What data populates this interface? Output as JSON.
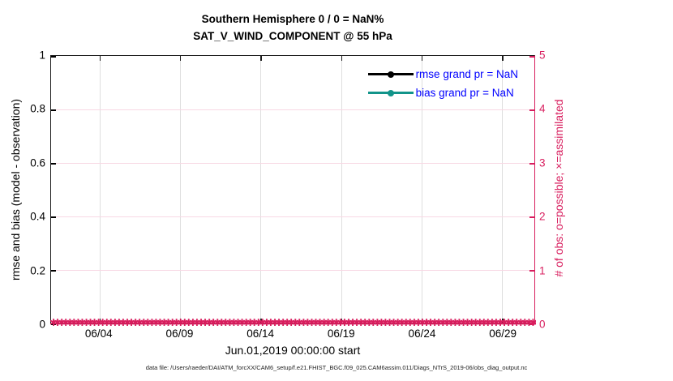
{
  "figure": {
    "titles": {
      "line1": "Southern Hemisphere 0 / 0 = NaN%",
      "line2": "SAT_V_WIND_COMPONENT @ 55 hPa"
    },
    "footer": "data file: /Users/raeder/DAI/ATM_forcXX/CAM6_setup/f.e21.FHIST_BGC.f09_025.CAM6assim.011/Diags_NTrS_2019-06/obs_diag_output.nc"
  },
  "chart_data": {
    "type": "line",
    "title": "Southern Hemisphere 0 / 0 = NaN% — SAT_V_WIND_COMPONENT @ 55 hPa",
    "x_axis": {
      "label": "Jun.01,2019 00:00:00 start",
      "range_days": [
        0,
        30
      ],
      "ticks": [
        {
          "day": 3,
          "label": "06/04"
        },
        {
          "day": 8,
          "label": "06/09"
        },
        {
          "day": 13,
          "label": "06/14"
        },
        {
          "day": 18,
          "label": "06/19"
        },
        {
          "day": 23,
          "label": "06/24"
        },
        {
          "day": 28,
          "label": "06/29"
        }
      ]
    },
    "left_axis": {
      "label": "rmse and bias (model - observation)",
      "range": [
        0,
        1
      ],
      "color": "#000000",
      "ticks": [
        {
          "v": 0,
          "label": "0"
        },
        {
          "v": 0.2,
          "label": "0.2"
        },
        {
          "v": 0.4,
          "label": "0.4"
        },
        {
          "v": 0.6,
          "label": "0.6"
        },
        {
          "v": 0.8,
          "label": "0.8"
        },
        {
          "v": 1,
          "label": "1"
        }
      ]
    },
    "right_axis": {
      "label": "# of obs: o=possible; ×=assimilated",
      "range": [
        0,
        5
      ],
      "color": "#d81e5e",
      "ticks": [
        {
          "v": 0,
          "label": "0"
        },
        {
          "v": 1,
          "label": "1"
        },
        {
          "v": 2,
          "label": "2"
        },
        {
          "v": 3,
          "label": "3"
        },
        {
          "v": 4,
          "label": "4"
        },
        {
          "v": 5,
          "label": "5"
        }
      ]
    },
    "legend": {
      "position": "top-right",
      "text_color": "#0000ff",
      "items": [
        {
          "label": "rmse grand pr = NaN",
          "color": "#000000"
        },
        {
          "label": "bias grand pr = NaN",
          "color": "#12948a"
        }
      ]
    },
    "series": [
      {
        "name": "rmse",
        "grand_pr": "NaN",
        "points": []
      },
      {
        "name": "bias",
        "grand_pr": "NaN",
        "points": []
      }
    ],
    "obs_counts": {
      "axis": "right",
      "value_all_bins": 0,
      "note": "possible and assimilated obs counts are 0 for every time bin shown (dense marker band along y=0)",
      "marker_glyph": "✱",
      "marker_count": 150,
      "color": "#d81e5e"
    },
    "grid": {
      "vertical_color": "#dedede",
      "horizontal_color": "#f8d8e4",
      "grid_on": true
    }
  }
}
